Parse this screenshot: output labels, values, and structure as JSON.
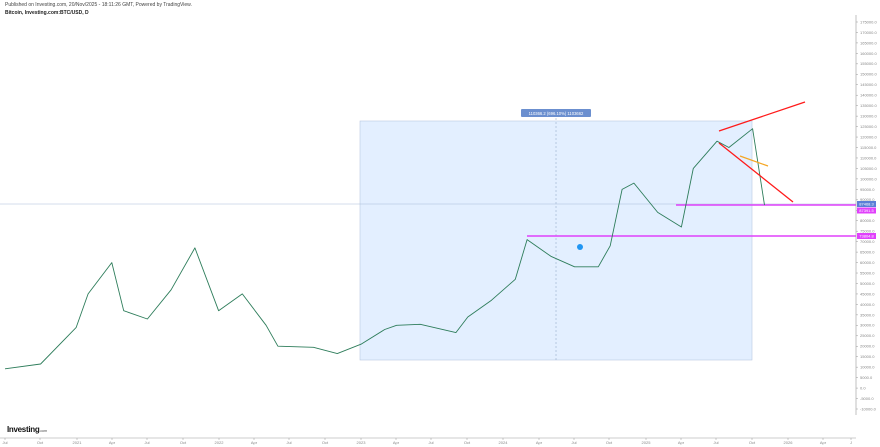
{
  "header": {
    "published": "Published on Investing.com, 20/Nov/2025 - 18:11:26 GMT, Powered by TradingView.",
    "symbol": "Bitcoin, Investing.com:BTC/USD, D"
  },
  "logo": {
    "name": "Investing",
    "suffix": ".com"
  },
  "measure_label": "110366.2 (696.10%) 1103662",
  "price_labels": [
    {
      "value": "87468.3",
      "color": "#5b7fd6",
      "role": "last-price"
    },
    {
      "value": "87391.5",
      "color": "#e040fb",
      "role": "horizontal-line"
    },
    {
      "value": "73804.8",
      "color": "#e040fb",
      "role": "horizontal-line"
    }
  ],
  "colors": {
    "up": "#26a69a",
    "down": "#ef5350",
    "range_fill": "#e3efff",
    "trendline": "#ff1a1a",
    "horizontal_line": "#e040fb",
    "orange_line": "#f5a623",
    "axis": "#999999"
  },
  "chart_data": {
    "type": "line",
    "title": "Bitcoin, Investing.com:BTC/USD, D",
    "xlabel": "",
    "ylabel": "",
    "ylim": [
      -10000,
      175000
    ],
    "y_ticks": [
      175000,
      170000,
      165000,
      160000,
      155000,
      150000,
      145000,
      140000,
      135000,
      130000,
      125000,
      120000,
      115000,
      110000,
      105000,
      100000,
      95000,
      90000,
      85000,
      80000,
      75000,
      70000,
      65000,
      60000,
      55000,
      50000,
      45000,
      40000,
      35000,
      30000,
      25000,
      20000,
      15000,
      10000,
      5000,
      0,
      -5000,
      -10000
    ],
    "x_ticks": [
      "Jul",
      "Oct",
      "2021",
      "Apr",
      "Jul",
      "Oct",
      "2022",
      "Apr",
      "Jul",
      "Oct",
      "2023",
      "Apr",
      "Jul",
      "Oct",
      "2024",
      "Apr",
      "Jul",
      "Oct",
      "2025",
      "Apr",
      "Jul",
      "Oct",
      "2026",
      "Apr",
      "J"
    ],
    "grid": false,
    "legend": null,
    "series": [
      {
        "name": "BTC/USD",
        "x": [
          "2020-07",
          "2020-10",
          "2021-01",
          "2021-02",
          "2021-04",
          "2021-05",
          "2021-07",
          "2021-09",
          "2021-11",
          "2022-01",
          "2022-03",
          "2022-05",
          "2022-06",
          "2022-09",
          "2022-11",
          "2023-01",
          "2023-03",
          "2023-04",
          "2023-06",
          "2023-09",
          "2023-10",
          "2023-12",
          "2024-02",
          "2024-03",
          "2024-05",
          "2024-07",
          "2024-09",
          "2024-10",
          "2024-11",
          "2024-12",
          "2025-02",
          "2025-04",
          "2025-05",
          "2025-07",
          "2025-08",
          "2025-10",
          "2025-11"
        ],
        "values": [
          9200,
          11500,
          29000,
          45000,
          60000,
          37000,
          33000,
          47000,
          67000,
          37000,
          45000,
          30000,
          20000,
          19500,
          16500,
          21000,
          28000,
          30000,
          30500,
          26500,
          34000,
          42000,
          52000,
          71000,
          63000,
          58000,
          58000,
          68000,
          95000,
          98000,
          84000,
          77000,
          105000,
          118000,
          115000,
          124000,
          87468
        ]
      }
    ],
    "annotations": [
      {
        "type": "range-measure",
        "from": "2022-12",
        "to": "2025-10",
        "price_low": 15800,
        "price_high": 126000,
        "label": "110366.2 (696.10%) 1103662"
      },
      {
        "type": "horizontal-line",
        "value": 87391.5,
        "color": "#e040fb",
        "from": "2025-03"
      },
      {
        "type": "horizontal-line",
        "value": 73804.8,
        "color": "#e040fb",
        "from": "2024-03"
      },
      {
        "type": "trendline",
        "name": "upper-broadening",
        "color": "#ff1a1a"
      },
      {
        "type": "trendline",
        "name": "lower-broadening",
        "color": "#ff1a1a"
      },
      {
        "type": "trendline",
        "name": "orange-support",
        "color": "#f5a623"
      }
    ],
    "last_price": 87468.3
  }
}
